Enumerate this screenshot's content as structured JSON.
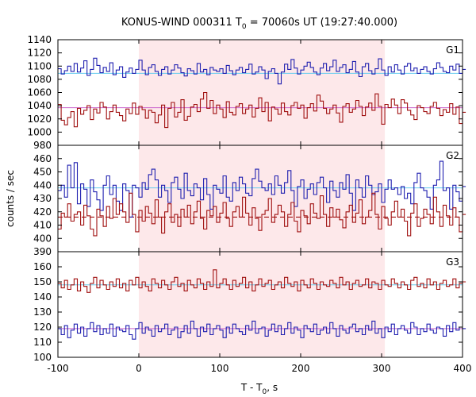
{
  "chart_data": {
    "type": "line",
    "title": "KONUS-WIND 000311 T",
    "title_sub": "0",
    "title_rest": " = 70060s UT (19:27:40.000)",
    "xlabel": "T - T",
    "xlabel_sub": "0",
    "xlabel_rest": ", s",
    "ylabel": "counts / sec",
    "xlim": [
      -100,
      400
    ],
    "xticks": [
      -100,
      0,
      100,
      200,
      300,
      400
    ],
    "shaded_interval": [
      0,
      304
    ],
    "colors": {
      "shade": "#fde8ea",
      "blue_series": "#2020b0",
      "red_series": "#a01010",
      "blue_background": "#66ccee",
      "red_background": "#cc66cc",
      "red_dashed": "#a01010"
    },
    "x_start": -100,
    "bin_width": 4,
    "panels": [
      {
        "label": "G1",
        "ylim": [
          980,
          1140
        ],
        "yticks": [
          980,
          1000,
          1020,
          1040,
          1060,
          1080,
          1100,
          1120,
          1140
        ],
        "background_levels": [
          1089,
          1037
        ],
        "background_styles": [
          "solid",
          "solid"
        ],
        "series": [
          {
            "color": "blue",
            "values": [
              1096,
              1088,
              1093,
              1100,
              1092,
              1104,
              1091,
              1097,
              1108,
              1086,
              1095,
              1112,
              1101,
              1090,
              1098,
              1092,
              1105,
              1087,
              1094,
              1099,
              1083,
              1091,
              1097,
              1089,
              1095,
              1109,
              1094,
              1087,
              1098,
              1102,
              1092,
              1086,
              1095,
              1099,
              1088,
              1094,
              1102,
              1097,
              1090,
              1085,
              1096,
              1093,
              1088,
              1104,
              1091,
              1095,
              1087,
              1098,
              1094,
              1092,
              1096,
              1089,
              1101,
              1093,
              1087,
              1094,
              1098,
              1090,
              1095,
              1103,
              1088,
              1091,
              1099,
              1094,
              1081,
              1092,
              1096,
              1089,
              1073,
              1091,
              1103,
              1095,
              1110,
              1097,
              1088,
              1094,
              1100,
              1106,
              1098,
              1091,
              1087,
              1097,
              1104,
              1093,
              1099,
              1109,
              1092,
              1098,
              1102,
              1090,
              1095,
              1107,
              1091,
              1084,
              1099,
              1104,
              1093,
              1088,
              1096,
              1111,
              1094,
              1086,
              1099,
              1091,
              1102,
              1094,
              1088,
              1100,
              1104,
              1093,
              1097,
              1089,
              1095,
              1099,
              1092,
              1088,
              1096,
              1105,
              1098,
              1092,
              1090,
              1100,
              1094,
              1103,
              1089,
              1095
            ]
          },
          {
            "color": "red",
            "values": [
              1042,
              1018,
              1011,
              1022,
              1031,
              1008,
              1036,
              1027,
              1033,
              1040,
              1019,
              1035,
              1029,
              1045,
              1038,
              1020,
              1031,
              1041,
              1030,
              1025,
              1017,
              1035,
              1028,
              1044,
              1027,
              1039,
              1034,
              1021,
              1033,
              1030,
              1014,
              1026,
              1041,
              1007,
              1036,
              1045,
              1023,
              1030,
              1049,
              1018,
              1024,
              1038,
              1042,
              1031,
              1050,
              1060,
              1036,
              1048,
              1028,
              1041,
              1035,
              1022,
              1046,
              1030,
              1026,
              1039,
              1043,
              1028,
              1035,
              1041,
              1023,
              1036,
              1052,
              1031,
              1045,
              1017,
              1038,
              1035,
              1027,
              1044,
              1031,
              1026,
              1040,
              1045,
              1036,
              1041,
              1021,
              1037,
              1043,
              1032,
              1056,
              1047,
              1036,
              1028,
              1035,
              1041,
              1029,
              1015,
              1039,
              1043,
              1030,
              1035,
              1048,
              1039,
              1025,
              1038,
              1044,
              1033,
              1058,
              1039,
              1012,
              1042,
              1037,
              1050,
              1041,
              1028,
              1049,
              1044,
              1033,
              1026,
              1019,
              1040,
              1037,
              1031,
              1028,
              1039,
              1045,
              1036,
              1025,
              1034,
              1030,
              1043,
              1027,
              1038,
              1013,
              1030
            ]
          }
        ]
      },
      {
        "label": "G2",
        "ylim": [
          390,
          470
        ],
        "yticks": [
          390,
          400,
          410,
          420,
          430,
          440,
          450,
          460
        ],
        "background_levels": [
          438,
          416
        ],
        "background_styles": [
          "solid",
          "dashed"
        ],
        "series": [
          {
            "color": "blue",
            "values": [
              436,
              440,
              431,
              455,
              438,
              457,
              426,
              441,
              437,
              424,
              444,
              435,
              429,
              421,
              440,
              447,
              433,
              440,
              428,
              421,
              441,
              436,
              416,
              440,
              438,
              431,
              442,
              437,
              448,
              452,
              444,
              431,
              440,
              436,
              427,
              442,
              446,
              437,
              430,
              449,
              436,
              432,
              441,
              438,
              429,
              445,
              433,
              422,
              440,
              437,
              434,
              447,
              431,
              428,
              442,
              436,
              446,
              441,
              434,
              432,
              445,
              452,
              443,
              438,
              436,
              441,
              433,
              447,
              440,
              434,
              442,
              451,
              436,
              424,
              439,
              444,
              430,
              437,
              441,
              433,
              442,
              446,
              438,
              427,
              443,
              436,
              431,
              442,
              437,
              448,
              434,
              421,
              444,
              438,
              431,
              447,
              440,
              433,
              435,
              441,
              427,
              437,
              444,
              437,
              438,
              433,
              439,
              430,
              434,
              426,
              442,
              449,
              438,
              436,
              431,
              422,
              440,
              444,
              458,
              436,
              438,
              422,
              440,
              435,
              428,
              439
            ]
          },
          {
            "color": "red",
            "values": [
              407,
              419,
              416,
              426,
              413,
              418,
              420,
              410,
              425,
              417,
              407,
              402,
              422,
              417,
              409,
              424,
              415,
              430,
              418,
              426,
              420,
              412,
              434,
              418,
              405,
              421,
              413,
              424,
              419,
              411,
              429,
              416,
              404,
              420,
              426,
              412,
              418,
              409,
              422,
              416,
              425,
              411,
              420,
              428,
              415,
              407,
              421,
              417,
              424,
              412,
              419,
              427,
              415,
              409,
              420,
              424,
              416,
              431,
              419,
              410,
              423,
              415,
              406,
              418,
              421,
              430,
              412,
              418,
              425,
              420,
              409,
              418,
              427,
              413,
              405,
              421,
              417,
              411,
              426,
              419,
              415,
              432,
              418,
              409,
              423,
              416,
              422,
              414,
              408,
              420,
              425,
              412,
              419,
              429,
              411,
              416,
              421,
              434,
              418,
              407,
              424,
              415,
              410,
              420,
              428,
              416,
              422,
              413,
              402,
              419,
              426,
              409,
              415,
              422,
              418,
              411,
              431,
              420,
              409,
              425,
              417,
              410,
              423,
              416,
              405,
              418
            ]
          }
        ]
      },
      {
        "label": "G3",
        "ylim": [
          100,
          170
        ],
        "yticks": [
          100,
          110,
          120,
          130,
          140,
          150,
          160
        ],
        "background_levels": [
          148,
          119
        ],
        "background_styles": [
          "solid",
          "solid"
        ],
        "series": [
          {
            "color": "blue",
            "values": [
              119,
              115,
              121,
              113,
              118,
              122,
              116,
              120,
              114,
              119,
              123,
              117,
              121,
              115,
              119,
              116,
              122,
              114,
              120,
              118,
              117,
              121,
              115,
              112,
              119,
              123,
              116,
              120,
              118,
              114,
              121,
              117,
              119,
              122,
              115,
              118,
              120,
              113,
              117,
              121,
              116,
              124,
              119,
              114,
              120,
              117,
              122,
              115,
              119,
              121,
              118,
              113,
              120,
              116,
              122,
              119,
              117,
              115,
              121,
              118,
              124,
              116,
              119,
              120,
              114,
              118,
              122,
              117,
              121,
              115,
              119,
              123,
              116,
              120,
              118,
              113,
              121,
              119,
              117,
              122,
              115,
              118,
              120,
              116,
              123,
              119,
              114,
              121,
              118,
              116,
              120,
              122,
              117,
              119,
              115,
              121,
              118,
              124,
              116,
              119,
              113,
              120,
              117,
              122,
              115,
              119,
              121,
              118,
              116,
              123,
              120,
              115,
              119,
              117,
              122,
              118,
              116,
              120,
              119,
              114,
              121,
              117,
              123,
              118,
              120,
              119
            ]
          },
          {
            "color": "red",
            "values": [
              149,
              146,
              151,
              145,
              148,
              152,
              144,
              150,
              147,
              143,
              149,
              153,
              146,
              151,
              148,
              145,
              150,
              147,
              152,
              146,
              149,
              144,
              151,
              148,
              153,
              146,
              150,
              147,
              144,
              152,
              149,
              146,
              151,
              148,
              145,
              150,
              153,
              147,
              149,
              144,
              151,
              148,
              146,
              152,
              149,
              145,
              150,
              147,
              158,
              146,
              149,
              152,
              148,
              145,
              151,
              147,
              149,
              153,
              146,
              150,
              144,
              148,
              152,
              147,
              149,
              151,
              145,
              148,
              150,
              146,
              153,
              149,
              147,
              150,
              144,
              151,
              148,
              146,
              152,
              149,
              145,
              150,
              148,
              147,
              151,
              149,
              146,
              153,
              148,
              150,
              145,
              149,
              151,
              147,
              148,
              152,
              146,
              150,
              149,
              145,
              151,
              148,
              147,
              152,
              149,
              146,
              150,
              148,
              145,
              151,
              153,
              147,
              149,
              146,
              152,
              148,
              150,
              145,
              149,
              151,
              147,
              148,
              152,
              146,
              149,
              150
            ]
          }
        ]
      }
    ]
  }
}
